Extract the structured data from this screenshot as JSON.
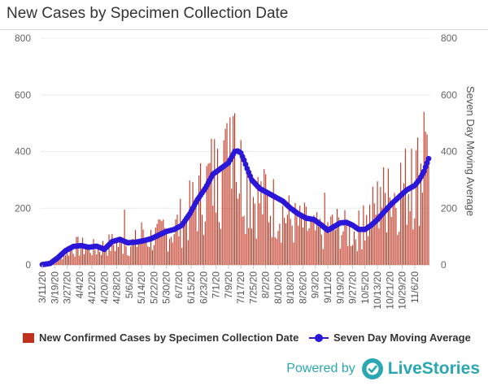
{
  "title": "New Cases by Specimen Collection Date",
  "colors": {
    "bar": "#c0321e",
    "line": "#2b17d8",
    "brand": "#2aa7b3"
  },
  "powered_by": {
    "text": "Powered by",
    "brand": "LiveStories"
  },
  "chart_data": {
    "type": "bar+line",
    "title": "New Cases by Specimen Collection Date",
    "y_left": {
      "min": 0,
      "max": 800,
      "ticks": [
        0,
        200,
        400,
        600,
        800
      ]
    },
    "y_right": {
      "min": 0,
      "max": 800,
      "ticks": [
        0,
        200,
        400,
        600,
        800
      ],
      "label": "Seven Day Moving Average"
    },
    "x_tick_labels": [
      "3/11/20",
      "3/19/20",
      "3/27/20",
      "4/4/20",
      "4/12/20",
      "4/20/20",
      "4/28/20",
      "5/6/20",
      "5/14/20",
      "5/22/20",
      "5/30/20",
      "6/7/20",
      "6/15/20",
      "6/23/20",
      "7/1/20",
      "7/9/20",
      "7/17/20",
      "7/25/20",
      "8/2/20",
      "8/10/20",
      "8/18/20",
      "8/26/20",
      "9/3/20",
      "9/11/20",
      "9/19/20",
      "9/27/20",
      "10/5/20",
      "10/13/20",
      "10/21/20",
      "10/29/20",
      "11/6/20"
    ],
    "x_tick_every_days": 8,
    "day_count": 250,
    "series": [
      {
        "name": "New Confirmed Cases by Specimen Collection Date",
        "type": "bar",
        "note": "daily values approximated from the figure; keyframes [day_index, typical_value] plus spikes",
        "keyframes": [
          [
            0,
            1
          ],
          [
            5,
            8
          ],
          [
            10,
            30
          ],
          [
            15,
            55
          ],
          [
            20,
            70
          ],
          [
            28,
            65
          ],
          [
            35,
            60
          ],
          [
            45,
            80
          ],
          [
            55,
            75
          ],
          [
            65,
            95
          ],
          [
            75,
            110
          ],
          [
            85,
            135
          ],
          [
            95,
            200
          ],
          [
            100,
            240
          ],
          [
            105,
            290
          ],
          [
            110,
            340
          ],
          [
            115,
            340
          ],
          [
            120,
            380
          ],
          [
            122,
            400
          ],
          [
            126,
            380
          ],
          [
            130,
            320
          ],
          [
            135,
            270
          ],
          [
            140,
            250
          ],
          [
            145,
            230
          ],
          [
            150,
            220
          ],
          [
            155,
            200
          ],
          [
            160,
            170
          ],
          [
            165,
            150
          ],
          [
            170,
            150
          ],
          [
            175,
            125
          ],
          [
            180,
            125
          ],
          [
            185,
            140
          ],
          [
            190,
            145
          ],
          [
            195,
            130
          ],
          [
            200,
            120
          ],
          [
            205,
            135
          ],
          [
            210,
            165
          ],
          [
            215,
            220
          ],
          [
            220,
            250
          ],
          [
            225,
            265
          ],
          [
            230,
            280
          ],
          [
            235,
            300
          ],
          [
            240,
            330
          ],
          [
            245,
            380
          ],
          [
            249,
            400
          ]
        ],
        "spikes": [
          [
            53,
            195
          ],
          [
            64,
            150
          ],
          [
            78,
            160
          ],
          [
            92,
            165
          ],
          [
            108,
            360
          ],
          [
            113,
            410
          ],
          [
            117,
            440
          ],
          [
            119,
            500
          ],
          [
            121,
            520
          ],
          [
            123,
            525
          ],
          [
            124,
            535
          ],
          [
            134,
            330
          ],
          [
            144,
            320
          ],
          [
            182,
            255
          ],
          [
            207,
            210
          ],
          [
            218,
            275
          ],
          [
            223,
            340
          ],
          [
            231,
            360
          ],
          [
            238,
            410
          ],
          [
            242,
            450
          ],
          [
            246,
            540
          ],
          [
            247,
            470
          ],
          [
            248,
            460
          ]
        ]
      },
      {
        "name": "Seven Day Moving Average",
        "type": "line",
        "keyframes": [
          [
            0,
            1
          ],
          [
            5,
            5
          ],
          [
            10,
            25
          ],
          [
            15,
            50
          ],
          [
            20,
            65
          ],
          [
            25,
            68
          ],
          [
            30,
            62
          ],
          [
            35,
            66
          ],
          [
            40,
            55
          ],
          [
            45,
            82
          ],
          [
            50,
            90
          ],
          [
            55,
            78
          ],
          [
            60,
            80
          ],
          [
            65,
            85
          ],
          [
            70,
            92
          ],
          [
            75,
            105
          ],
          [
            80,
            118
          ],
          [
            85,
            125
          ],
          [
            90,
            140
          ],
          [
            95,
            180
          ],
          [
            100,
            230
          ],
          [
            105,
            270
          ],
          [
            110,
            320
          ],
          [
            115,
            340
          ],
          [
            120,
            360
          ],
          [
            122,
            380
          ],
          [
            124,
            400
          ],
          [
            126,
            402
          ],
          [
            128,
            395
          ],
          [
            130,
            370
          ],
          [
            132,
            340
          ],
          [
            135,
            300
          ],
          [
            140,
            270
          ],
          [
            145,
            255
          ],
          [
            150,
            240
          ],
          [
            155,
            225
          ],
          [
            160,
            200
          ],
          [
            165,
            180
          ],
          [
            170,
            165
          ],
          [
            175,
            160
          ],
          [
            180,
            140
          ],
          [
            184,
            122
          ],
          [
            188,
            135
          ],
          [
            192,
            148
          ],
          [
            196,
            150
          ],
          [
            200,
            140
          ],
          [
            204,
            125
          ],
          [
            208,
            125
          ],
          [
            212,
            140
          ],
          [
            216,
            160
          ],
          [
            220,
            185
          ],
          [
            225,
            215
          ],
          [
            230,
            240
          ],
          [
            235,
            265
          ],
          [
            240,
            280
          ],
          [
            243,
            300
          ],
          [
            246,
            330
          ],
          [
            248,
            360
          ],
          [
            249,
            375
          ]
        ]
      }
    ],
    "legend": [
      {
        "label": "New Confirmed Cases by Specimen Collection Date",
        "type": "bar"
      },
      {
        "label": "Seven Day Moving Average",
        "type": "line"
      }
    ]
  }
}
